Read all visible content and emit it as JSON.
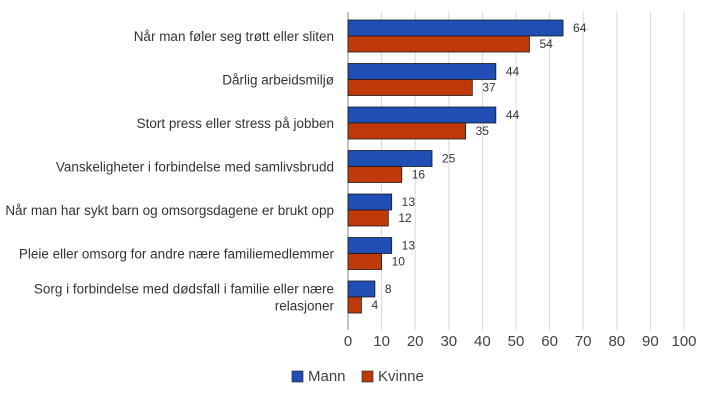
{
  "chart_data": {
    "type": "bar",
    "orientation": "horizontal",
    "categories": [
      [
        "Når man føler seg trøtt eller sliten"
      ],
      [
        "Dårlig arbeidsmiljø"
      ],
      [
        "Stort press eller stress på jobben"
      ],
      [
        "Vanskeligheter i forbindelse med samlivsbrudd"
      ],
      [
        "Når man har sykt barn og omsorgsdagene er brukt opp"
      ],
      [
        "Pleie eller omsorg for andre nære familiemedlemmer"
      ],
      [
        "Sorg i forbindelse med dødsfall i familie eller nære",
        "relasjoner"
      ]
    ],
    "series": [
      {
        "name": "Mann",
        "color": "#1f4eb4",
        "values": [
          64,
          44,
          44,
          25,
          13,
          13,
          8
        ]
      },
      {
        "name": "Kvinne",
        "color": "#c0390b",
        "values": [
          54,
          37,
          35,
          16,
          12,
          10,
          4
        ]
      }
    ],
    "xlim": [
      0,
      100
    ],
    "xticks": [
      0,
      10,
      20,
      30,
      40,
      50,
      60,
      70,
      80,
      90,
      100
    ],
    "grid": "vertical",
    "legend_position": "bottom",
    "data_labels": true
  }
}
